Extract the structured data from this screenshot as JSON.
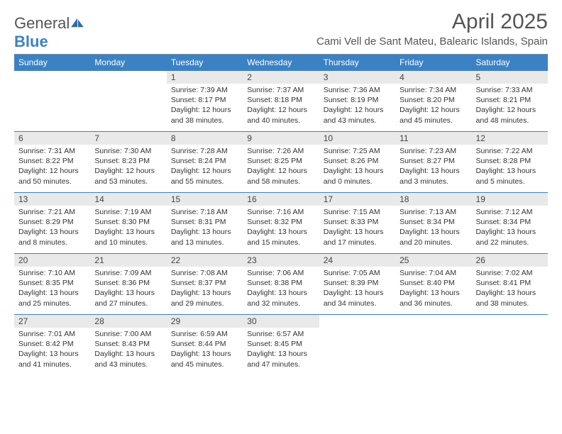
{
  "logo": {
    "text1": "General",
    "text2": "Blue"
  },
  "title": "April 2025",
  "location": "Cami Vell de Sant Mateu, Balearic Islands, Spain",
  "colors": {
    "header_bg": "#3b82c4",
    "daynum_bg": "#e9e9e9",
    "row_border": "#3b82c4",
    "text": "#333333",
    "title_text": "#555555"
  },
  "columns": [
    "Sunday",
    "Monday",
    "Tuesday",
    "Wednesday",
    "Thursday",
    "Friday",
    "Saturday"
  ],
  "weeks": [
    [
      null,
      null,
      {
        "n": "1",
        "sr": "7:39 AM",
        "ss": "8:17 PM",
        "dl": "12 hours and 38 minutes."
      },
      {
        "n": "2",
        "sr": "7:37 AM",
        "ss": "8:18 PM",
        "dl": "12 hours and 40 minutes."
      },
      {
        "n": "3",
        "sr": "7:36 AM",
        "ss": "8:19 PM",
        "dl": "12 hours and 43 minutes."
      },
      {
        "n": "4",
        "sr": "7:34 AM",
        "ss": "8:20 PM",
        "dl": "12 hours and 45 minutes."
      },
      {
        "n": "5",
        "sr": "7:33 AM",
        "ss": "8:21 PM",
        "dl": "12 hours and 48 minutes."
      }
    ],
    [
      {
        "n": "6",
        "sr": "7:31 AM",
        "ss": "8:22 PM",
        "dl": "12 hours and 50 minutes."
      },
      {
        "n": "7",
        "sr": "7:30 AM",
        "ss": "8:23 PM",
        "dl": "12 hours and 53 minutes."
      },
      {
        "n": "8",
        "sr": "7:28 AM",
        "ss": "8:24 PM",
        "dl": "12 hours and 55 minutes."
      },
      {
        "n": "9",
        "sr": "7:26 AM",
        "ss": "8:25 PM",
        "dl": "12 hours and 58 minutes."
      },
      {
        "n": "10",
        "sr": "7:25 AM",
        "ss": "8:26 PM",
        "dl": "13 hours and 0 minutes."
      },
      {
        "n": "11",
        "sr": "7:23 AM",
        "ss": "8:27 PM",
        "dl": "13 hours and 3 minutes."
      },
      {
        "n": "12",
        "sr": "7:22 AM",
        "ss": "8:28 PM",
        "dl": "13 hours and 5 minutes."
      }
    ],
    [
      {
        "n": "13",
        "sr": "7:21 AM",
        "ss": "8:29 PM",
        "dl": "13 hours and 8 minutes."
      },
      {
        "n": "14",
        "sr": "7:19 AM",
        "ss": "8:30 PM",
        "dl": "13 hours and 10 minutes."
      },
      {
        "n": "15",
        "sr": "7:18 AM",
        "ss": "8:31 PM",
        "dl": "13 hours and 13 minutes."
      },
      {
        "n": "16",
        "sr": "7:16 AM",
        "ss": "8:32 PM",
        "dl": "13 hours and 15 minutes."
      },
      {
        "n": "17",
        "sr": "7:15 AM",
        "ss": "8:33 PM",
        "dl": "13 hours and 17 minutes."
      },
      {
        "n": "18",
        "sr": "7:13 AM",
        "ss": "8:34 PM",
        "dl": "13 hours and 20 minutes."
      },
      {
        "n": "19",
        "sr": "7:12 AM",
        "ss": "8:34 PM",
        "dl": "13 hours and 22 minutes."
      }
    ],
    [
      {
        "n": "20",
        "sr": "7:10 AM",
        "ss": "8:35 PM",
        "dl": "13 hours and 25 minutes."
      },
      {
        "n": "21",
        "sr": "7:09 AM",
        "ss": "8:36 PM",
        "dl": "13 hours and 27 minutes."
      },
      {
        "n": "22",
        "sr": "7:08 AM",
        "ss": "8:37 PM",
        "dl": "13 hours and 29 minutes."
      },
      {
        "n": "23",
        "sr": "7:06 AM",
        "ss": "8:38 PM",
        "dl": "13 hours and 32 minutes."
      },
      {
        "n": "24",
        "sr": "7:05 AM",
        "ss": "8:39 PM",
        "dl": "13 hours and 34 minutes."
      },
      {
        "n": "25",
        "sr": "7:04 AM",
        "ss": "8:40 PM",
        "dl": "13 hours and 36 minutes."
      },
      {
        "n": "26",
        "sr": "7:02 AM",
        "ss": "8:41 PM",
        "dl": "13 hours and 38 minutes."
      }
    ],
    [
      {
        "n": "27",
        "sr": "7:01 AM",
        "ss": "8:42 PM",
        "dl": "13 hours and 41 minutes."
      },
      {
        "n": "28",
        "sr": "7:00 AM",
        "ss": "8:43 PM",
        "dl": "13 hours and 43 minutes."
      },
      {
        "n": "29",
        "sr": "6:59 AM",
        "ss": "8:44 PM",
        "dl": "13 hours and 45 minutes."
      },
      {
        "n": "30",
        "sr": "6:57 AM",
        "ss": "8:45 PM",
        "dl": "13 hours and 47 minutes."
      },
      null,
      null,
      null
    ]
  ],
  "labels": {
    "sunrise": "Sunrise:",
    "sunset": "Sunset:",
    "daylight": "Daylight:"
  }
}
